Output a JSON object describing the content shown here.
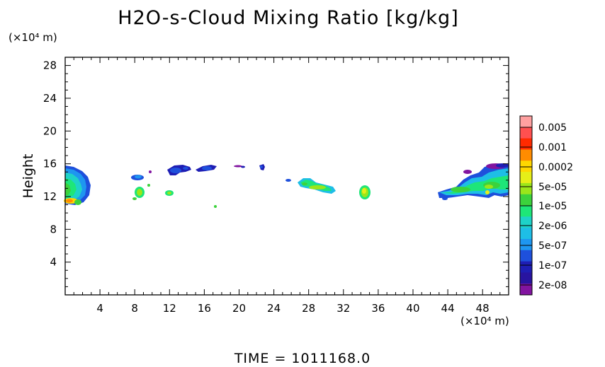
{
  "chart_data": {
    "type": "heatmap",
    "title": "H2O-s-Cloud Mixing Ratio [kg/kg]",
    "ylabel": "Height",
    "y_unit": "(×10⁴ m)",
    "x_unit": "(×10⁴ m)",
    "xlim": [
      0,
      51
    ],
    "ylim": [
      0,
      29
    ],
    "x_ticks": [
      "4",
      "8",
      "12",
      "16",
      "20",
      "24",
      "28",
      "32",
      "36",
      "40",
      "44",
      "48"
    ],
    "y_ticks": [
      "4",
      "8",
      "12",
      "16",
      "20",
      "24",
      "28"
    ],
    "colorbar": {
      "labels": [
        "0.005",
        "0.001",
        "0.0002",
        "5e-05",
        "1e-05",
        "2e-06",
        "5e-07",
        "1e-07",
        "2e-08"
      ],
      "colors": [
        "#ffa0a0",
        "#ff5050",
        "#ff2a00",
        "#ff8c00",
        "#ffd700",
        "#e6ee18",
        "#9be61a",
        "#3cd23c",
        "#1ee678",
        "#1ed2c8",
        "#1ebee6",
        "#1e96f0",
        "#1e50dc",
        "#1e1eb4",
        "#2814a0",
        "#8214a0"
      ]
    },
    "cloud_regions": [
      {
        "x": [
          0,
          3.2
        ],
        "y": [
          10.5,
          16.5
        ],
        "level": "1e-05 to 0.0002"
      },
      {
        "x": [
          8,
          10
        ],
        "y": [
          11.5,
          15
        ],
        "level": "2e-06 to 1e-05"
      },
      {
        "x": [
          12,
          14
        ],
        "y": [
          12,
          16
        ],
        "level": "5e-07 to 1e-06"
      },
      {
        "x": [
          12,
          13
        ],
        "y": [
          12,
          12.8
        ],
        "level": "2e-06"
      },
      {
        "x": [
          14.5,
          17.5
        ],
        "y": [
          15.5,
          16.5
        ],
        "level": "1e-07"
      },
      {
        "x": [
          17.5,
          18
        ],
        "y": [
          11,
          11.5
        ],
        "level": "1e-05"
      },
      {
        "x": [
          19,
          23
        ],
        "y": [
          15.5,
          16.5
        ],
        "level": "1e-07"
      },
      {
        "x": [
          25,
          31
        ],
        "y": [
          12.5,
          15
        ],
        "level": "2e-06 to 1e-05"
      },
      {
        "x": [
          33.5,
          35
        ],
        "y": [
          11.5,
          14
        ],
        "level": "5e-05"
      },
      {
        "x": [
          43,
          51
        ],
        "y": [
          12,
          16.5
        ],
        "level": "1e-07 to 5e-05"
      }
    ]
  },
  "footer": {
    "time_text": "TIME = 1011168.0"
  }
}
